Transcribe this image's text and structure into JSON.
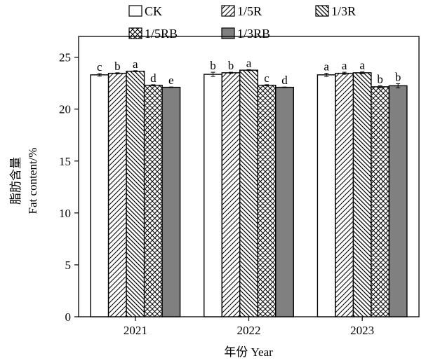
{
  "chart_data": {
    "type": "bar",
    "xlabel": "年份 Year",
    "ylabel_zh": "脂肪含量",
    "ylabel_en": "Fat content/%",
    "ylim": [
      0,
      27
    ],
    "yticks": [
      0,
      5,
      10,
      15,
      20,
      25
    ],
    "categories": [
      "2021",
      "2022",
      "2023"
    ],
    "legend_position": "top",
    "series": [
      {
        "name": "CK",
        "pattern": "none",
        "color": "#ffffff",
        "values": [
          23.3,
          23.35,
          23.3
        ],
        "errors": [
          0.12,
          0.2,
          0.15
        ],
        "letters": [
          "c",
          "b",
          "a"
        ]
      },
      {
        "name": "1/5R",
        "pattern": "diag-up",
        "color": "#ffffff",
        "values": [
          23.45,
          23.5,
          23.45
        ],
        "errors": [
          0.05,
          0.05,
          0.1
        ],
        "letters": [
          "b",
          "b",
          "a"
        ]
      },
      {
        "name": "1/3R",
        "pattern": "diag-down",
        "color": "#ffffff",
        "values": [
          23.65,
          23.75,
          23.5
        ],
        "errors": [
          0.05,
          0.05,
          0.08
        ],
        "letters": [
          "a",
          "a",
          "a"
        ]
      },
      {
        "name": "1/5RB",
        "pattern": "crosshatch",
        "color": "#ffffff",
        "values": [
          22.3,
          22.3,
          22.15
        ],
        "errors": [
          0.05,
          0.05,
          0.1
        ],
        "letters": [
          "d",
          "c",
          "b"
        ]
      },
      {
        "name": "1/3RB",
        "pattern": "solid",
        "color": "#808080",
        "values": [
          22.1,
          22.1,
          22.25
        ],
        "errors": [
          0.03,
          0.03,
          0.2
        ],
        "letters": [
          "e",
          "d",
          "b"
        ]
      }
    ]
  }
}
